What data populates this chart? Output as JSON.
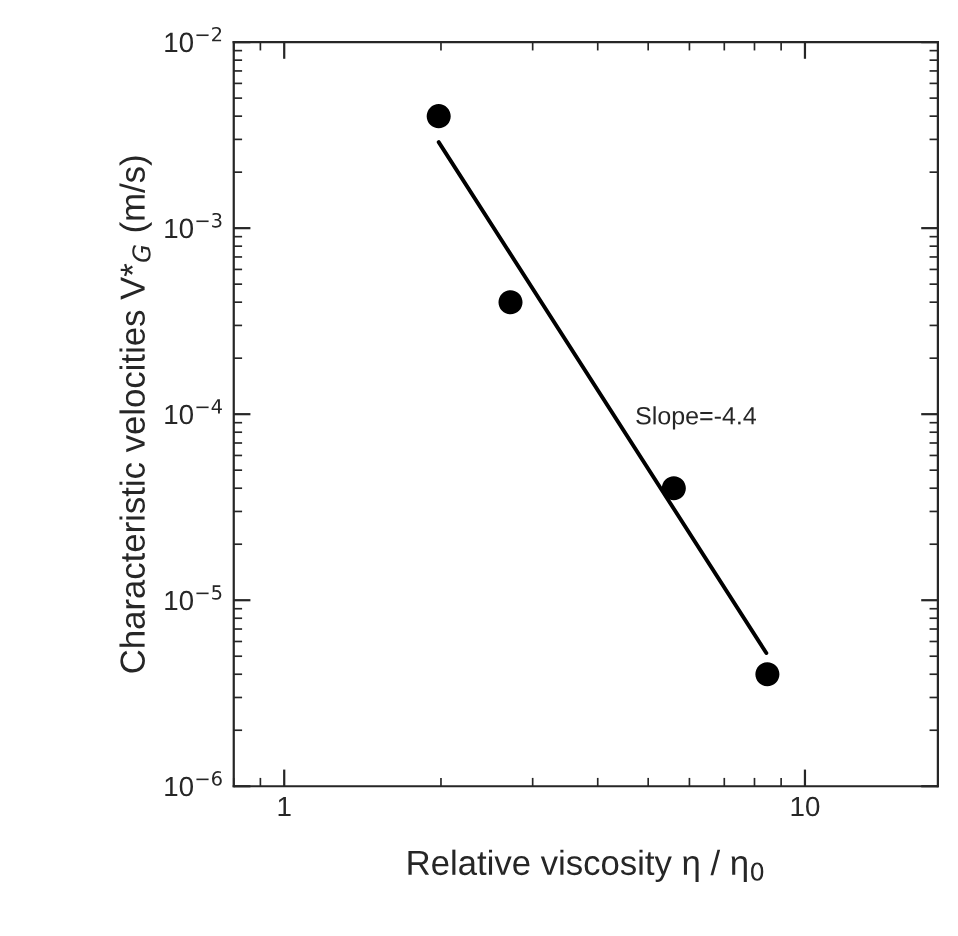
{
  "chart_data": {
    "type": "scatter",
    "xlabel": "Relative viscosity η / η$_{0}$",
    "ylabel": "Characteristic velocities V*$_{G}$ (m/s)",
    "log": "xy",
    "xlim": [
      0.8,
      18
    ],
    "ylim": [
      1e-06,
      0.01
    ],
    "xticks": [
      1,
      10
    ],
    "yticks": [
      {
        "value": 1e-06,
        "label": "10$^{−6}$"
      },
      {
        "value": 1e-05,
        "label": "10$^{−5}$"
      },
      {
        "value": 0.0001,
        "label": "10$^{−4}$"
      },
      {
        "value": 0.001,
        "label": "10$^{−3}$"
      },
      {
        "value": 0.01,
        "label": "10$^{−2}$"
      }
    ],
    "grid": false,
    "legend": false,
    "series": [
      {
        "color": "#000000",
        "marker": "circle",
        "x": [
          1.98,
          2.72,
          5.6,
          8.47
        ],
        "values": [
          0.004,
          0.0004,
          4e-05,
          4e-06
        ]
      },
      {
        "type": "line",
        "color": "#000000",
        "line_style": "solid",
        "marker": "none",
        "x": [
          1.98,
          8.43
        ],
        "values": [
          0.0029,
          5.2e-06
        ]
      }
    ],
    "annotations": [
      "Slope=-4.4"
    ]
  }
}
